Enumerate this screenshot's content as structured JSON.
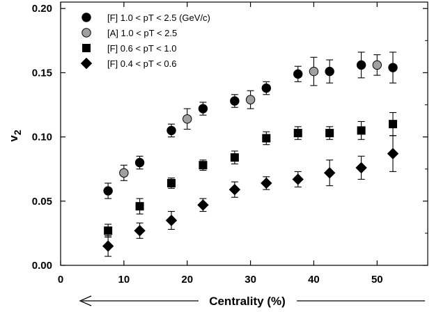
{
  "chart_data": {
    "type": "scatter",
    "xlabel": "Centrality (%)",
    "ylabel": "v",
    "ylabel_subscript": "2",
    "xlim": [
      0,
      58
    ],
    "ylim": [
      0,
      0.205
    ],
    "x_ticks": [
      0,
      10,
      20,
      30,
      40,
      50
    ],
    "x_tick_labels": [
      "0",
      "10",
      "20",
      "30",
      "40",
      "50"
    ],
    "y_ticks": [
      0,
      0.05,
      0.1,
      0.15,
      0.2
    ],
    "y_tick_labels": [
      "0.00",
      "0.05",
      "0.10",
      "0.15",
      "0.20"
    ],
    "grid": false,
    "legend_position": "top-left",
    "series": [
      {
        "name": "[F] 1.0 < pT < 2.5 (GeV/c)",
        "marker": "circle",
        "color": "#000000",
        "points": [
          {
            "x": 7.5,
            "y": 0.058,
            "err": 0.006
          },
          {
            "x": 12.5,
            "y": 0.08,
            "err": 0.005
          },
          {
            "x": 17.5,
            "y": 0.105,
            "err": 0.005
          },
          {
            "x": 22.5,
            "y": 0.122,
            "err": 0.005
          },
          {
            "x": 27.5,
            "y": 0.128,
            "err": 0.005
          },
          {
            "x": 32.5,
            "y": 0.138,
            "err": 0.005
          },
          {
            "x": 37.5,
            "y": 0.149,
            "err": 0.006
          },
          {
            "x": 42.5,
            "y": 0.151,
            "err": 0.009
          },
          {
            "x": 47.5,
            "y": 0.156,
            "err": 0.01
          },
          {
            "x": 52.5,
            "y": 0.154,
            "err": 0.012
          }
        ]
      },
      {
        "name": "[A] 1.0 < pT < 2.5",
        "marker": "circle",
        "color": "#a0a0a0",
        "points": [
          {
            "x": 10,
            "y": 0.072,
            "err": 0.006
          },
          {
            "x": 20,
            "y": 0.114,
            "err": 0.008
          },
          {
            "x": 30,
            "y": 0.129,
            "err": 0.007
          },
          {
            "x": 40,
            "y": 0.151,
            "err": 0.011
          },
          {
            "x": 50,
            "y": 0.156,
            "err": 0.008
          }
        ]
      },
      {
        "name": "[F] 0.6 < pT < 1.0",
        "marker": "square",
        "color": "#000000",
        "points": [
          {
            "x": 7.5,
            "y": 0.027,
            "err": 0.005
          },
          {
            "x": 12.5,
            "y": 0.046,
            "err": 0.006
          },
          {
            "x": 17.5,
            "y": 0.064,
            "err": 0.004
          },
          {
            "x": 22.5,
            "y": 0.078,
            "err": 0.004
          },
          {
            "x": 27.5,
            "y": 0.084,
            "err": 0.005
          },
          {
            "x": 32.5,
            "y": 0.099,
            "err": 0.005
          },
          {
            "x": 37.5,
            "y": 0.103,
            "err": 0.005
          },
          {
            "x": 42.5,
            "y": 0.103,
            "err": 0.005
          },
          {
            "x": 47.5,
            "y": 0.105,
            "err": 0.007
          },
          {
            "x": 52.5,
            "y": 0.11,
            "err": 0.009
          }
        ]
      },
      {
        "name": "[F] 0.4 < pT < 0.6",
        "marker": "diamond",
        "color": "#000000",
        "points": [
          {
            "x": 7.5,
            "y": 0.015,
            "err": 0.008
          },
          {
            "x": 12.5,
            "y": 0.027,
            "err": 0.006
          },
          {
            "x": 17.5,
            "y": 0.035,
            "err": 0.007
          },
          {
            "x": 22.5,
            "y": 0.047,
            "err": 0.005
          },
          {
            "x": 27.5,
            "y": 0.059,
            "err": 0.006
          },
          {
            "x": 32.5,
            "y": 0.064,
            "err": 0.005
          },
          {
            "x": 37.5,
            "y": 0.067,
            "err": 0.006
          },
          {
            "x": 42.5,
            "y": 0.072,
            "err": 0.01
          },
          {
            "x": 47.5,
            "y": 0.076,
            "err": 0.009
          },
          {
            "x": 52.5,
            "y": 0.087,
            "err": 0.014
          }
        ]
      }
    ]
  }
}
